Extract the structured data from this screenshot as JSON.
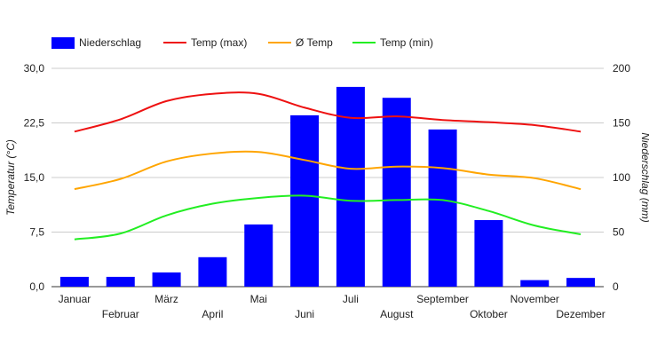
{
  "chart_data": {
    "type": "bar+line",
    "categories": [
      "Januar",
      "Februar",
      "März",
      "April",
      "Mai",
      "Juni",
      "Juli",
      "August",
      "September",
      "Oktober",
      "November",
      "Dezember"
    ],
    "bar_series": {
      "name": "Niederschlag",
      "color": "#0000ff",
      "axis": "right",
      "values": [
        9,
        9,
        13,
        27,
        57,
        157,
        183,
        173,
        144,
        61,
        6,
        8
      ]
    },
    "line_series": [
      {
        "name": "Temp (max)",
        "color": "#ee1111",
        "values": [
          21.3,
          23.0,
          25.5,
          26.5,
          26.5,
          24.6,
          23.2,
          23.4,
          22.9,
          22.6,
          22.2,
          21.3
        ]
      },
      {
        "name": "Ø Temp",
        "color": "#ffa500",
        "values": [
          13.4,
          14.8,
          17.2,
          18.3,
          18.5,
          17.4,
          16.2,
          16.5,
          16.3,
          15.4,
          14.9,
          13.4
        ]
      },
      {
        "name": "Temp (min)",
        "color": "#22ee22",
        "values": [
          6.5,
          7.3,
          9.8,
          11.4,
          12.2,
          12.5,
          11.8,
          11.9,
          11.9,
          10.4,
          8.4,
          7.2
        ]
      }
    ],
    "left_axis": {
      "label": "Temperatur (°C)",
      "ylim": [
        0,
        30
      ],
      "ticks": [
        "0,0",
        "7,5",
        "15,0",
        "22,5",
        "30,0"
      ]
    },
    "right_axis": {
      "label": "Niederschlag (mm)",
      "ylim": [
        0,
        200
      ],
      "ticks": [
        "0",
        "50",
        "100",
        "150",
        "200"
      ]
    },
    "grid": true,
    "legend_position": "top-left"
  }
}
